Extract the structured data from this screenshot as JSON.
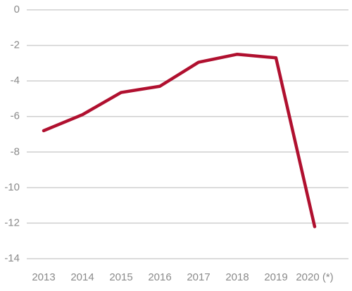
{
  "chart_data": {
    "type": "line",
    "categories": [
      "2013",
      "2014",
      "2015",
      "2016",
      "2017",
      "2018",
      "2019",
      "2020 (*)"
    ],
    "values": [
      -6.8,
      -5.9,
      -4.65,
      -4.3,
      -2.95,
      -2.5,
      -2.7,
      -12.2
    ],
    "color": "#b0102f",
    "ylim": [
      -14,
      0
    ],
    "yticks": [
      0,
      -2,
      -4,
      -6,
      -8,
      -10,
      -12,
      -14
    ],
    "grid": true
  }
}
